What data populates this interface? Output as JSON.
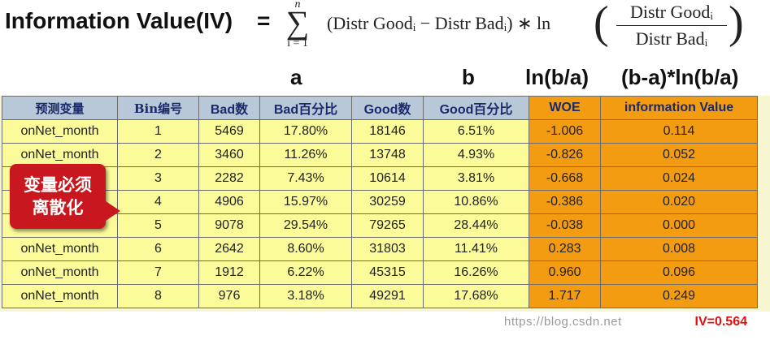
{
  "title": "Information Value(IV)",
  "equals": "=",
  "formula": {
    "sum_upper": "n",
    "sum_symbol": "∑",
    "sum_lower": "i = 1",
    "term": "(Distr Goodᵢ − Distr Badᵢ) ∗ ln",
    "frac_numerator": "Distr Goodᵢ",
    "frac_denominator": "Distr Badᵢ",
    "lparen": "(",
    "rparen": ")"
  },
  "column_annotations": {
    "a": "a",
    "b": "b",
    "ln": "ln(b/a)",
    "b_minus_a_ln": "(b-a)*ln(b/a)"
  },
  "table": {
    "headers": [
      "预测变量",
      "Bin编号",
      "Bad数",
      "Bad百分比",
      "Good数",
      "Good百分比",
      "WOE",
      "information Value"
    ],
    "rows": [
      [
        "onNet_month",
        "1",
        "5469",
        "17.80%",
        "18146",
        "6.51%",
        "-1.006",
        "0.114"
      ],
      [
        "onNet_month",
        "2",
        "3460",
        "11.26%",
        "13748",
        "4.93%",
        "-0.826",
        "0.052"
      ],
      [
        "",
        "3",
        "2282",
        "7.43%",
        "10614",
        "3.81%",
        "-0.668",
        "0.024"
      ],
      [
        "",
        "4",
        "4906",
        "15.97%",
        "30259",
        "10.86%",
        "-0.386",
        "0.020"
      ],
      [
        "",
        "5",
        "9078",
        "29.54%",
        "79265",
        "28.44%",
        "-0.038",
        "0.000"
      ],
      [
        "onNet_month",
        "6",
        "2642",
        "8.60%",
        "31803",
        "11.41%",
        "0.283",
        "0.008"
      ],
      [
        "onNet_month",
        "7",
        "1912",
        "6.22%",
        "45315",
        "16.26%",
        "0.960",
        "0.096"
      ],
      [
        "onNet_month",
        "8",
        "976",
        "3.18%",
        "49291",
        "17.68%",
        "1.717",
        "0.249"
      ]
    ]
  },
  "callout": {
    "line1": "变量必须",
    "line2": "离散化"
  },
  "iv_total": "IV=0.564",
  "watermark": "https://blog.csdn.net",
  "colors": {
    "header_bg": "#b9c8d8",
    "header_text": "#1b2a6b",
    "cell_bg": "#fbfb9a",
    "highlight_bg": "#f39c12",
    "callout_bg": "#c8171e",
    "iv_text": "#e01010"
  }
}
